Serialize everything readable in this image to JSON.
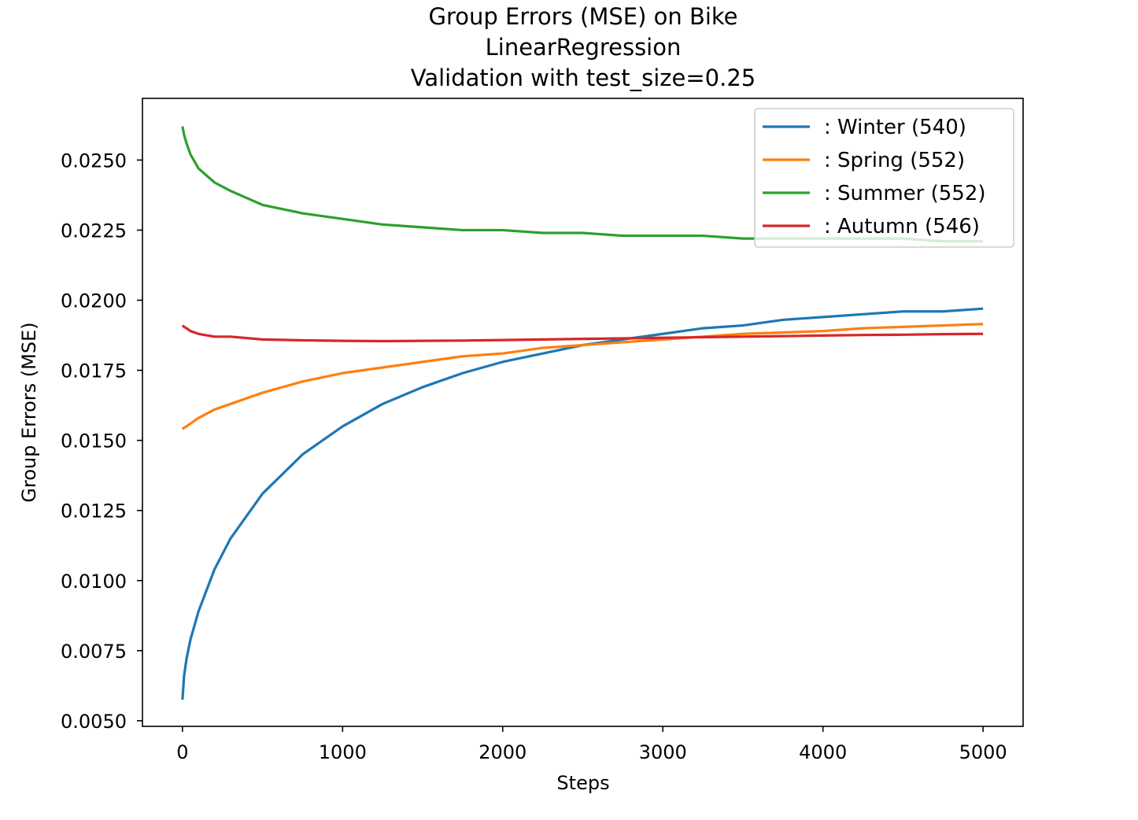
{
  "chart_data": {
    "type": "line",
    "title_lines": [
      "Group Errors (MSE) on Bike",
      "LinearRegression",
      "Validation with test_size=0.25"
    ],
    "xlabel": "Steps",
    "ylabel": "Group Errors (MSE)",
    "xlim": [
      -250,
      5250
    ],
    "ylim": [
      0.0048,
      0.0272
    ],
    "x_ticks": [
      0,
      1000,
      2000,
      3000,
      4000,
      5000
    ],
    "x_tick_labels": [
      "0",
      "1000",
      "2000",
      "3000",
      "4000",
      "5000"
    ],
    "y_ticks": [
      0.005,
      0.0075,
      0.01,
      0.0125,
      0.015,
      0.0175,
      0.02,
      0.0225,
      0.025
    ],
    "y_tick_labels": [
      "0.0050",
      "0.0075",
      "0.0100",
      "0.0125",
      "0.0150",
      "0.0175",
      "0.0200",
      "0.0225",
      "0.0250"
    ],
    "grid": false,
    "legend_position": "top-right",
    "x": [
      0,
      10,
      25,
      50,
      100,
      200,
      300,
      500,
      750,
      1000,
      1250,
      1500,
      1750,
      2000,
      2250,
      2500,
      2750,
      3000,
      3250,
      3500,
      3750,
      4000,
      4250,
      4500,
      4750,
      5000
    ],
    "series": [
      {
        "name": ": Winter  (540)",
        "color": "#1f77b4",
        "values": [
          0.00575,
          0.0066,
          0.0072,
          0.0079,
          0.0089,
          0.0104,
          0.0115,
          0.0131,
          0.0145,
          0.0155,
          0.0163,
          0.0169,
          0.0174,
          0.0178,
          0.0181,
          0.0184,
          0.0186,
          0.0188,
          0.019,
          0.0191,
          0.0193,
          0.0194,
          0.0195,
          0.0196,
          0.0196,
          0.0197
        ]
      },
      {
        "name": ": Spring  (552)",
        "color": "#ff7f0e",
        "values": [
          0.0154,
          0.01545,
          0.0155,
          0.0156,
          0.0158,
          0.0161,
          0.0163,
          0.0167,
          0.0171,
          0.0174,
          0.0176,
          0.0178,
          0.018,
          0.0181,
          0.0183,
          0.0184,
          0.0185,
          0.0186,
          0.0187,
          0.0188,
          0.01885,
          0.0189,
          0.019,
          0.01905,
          0.0191,
          0.01915
        ]
      },
      {
        "name": ": Summer  (552)",
        "color": "#2ca02c",
        "values": [
          0.0262,
          0.0259,
          0.0256,
          0.0252,
          0.0247,
          0.0242,
          0.0239,
          0.0234,
          0.0231,
          0.0229,
          0.0227,
          0.0226,
          0.0225,
          0.0225,
          0.0224,
          0.0224,
          0.0223,
          0.0223,
          0.0223,
          0.0222,
          0.0222,
          0.0222,
          0.0222,
          0.0222,
          0.0221,
          0.0221
        ]
      },
      {
        "name": ": Autumn  (546)",
        "color": "#d62728",
        "values": [
          0.0191,
          0.01905,
          0.019,
          0.0189,
          0.0188,
          0.0187,
          0.0187,
          0.0186,
          0.01857,
          0.01855,
          0.01854,
          0.01855,
          0.01856,
          0.01858,
          0.0186,
          0.01862,
          0.01864,
          0.01866,
          0.01868,
          0.0187,
          0.01872,
          0.01874,
          0.01876,
          0.01877,
          0.01879,
          0.0188
        ]
      }
    ]
  }
}
